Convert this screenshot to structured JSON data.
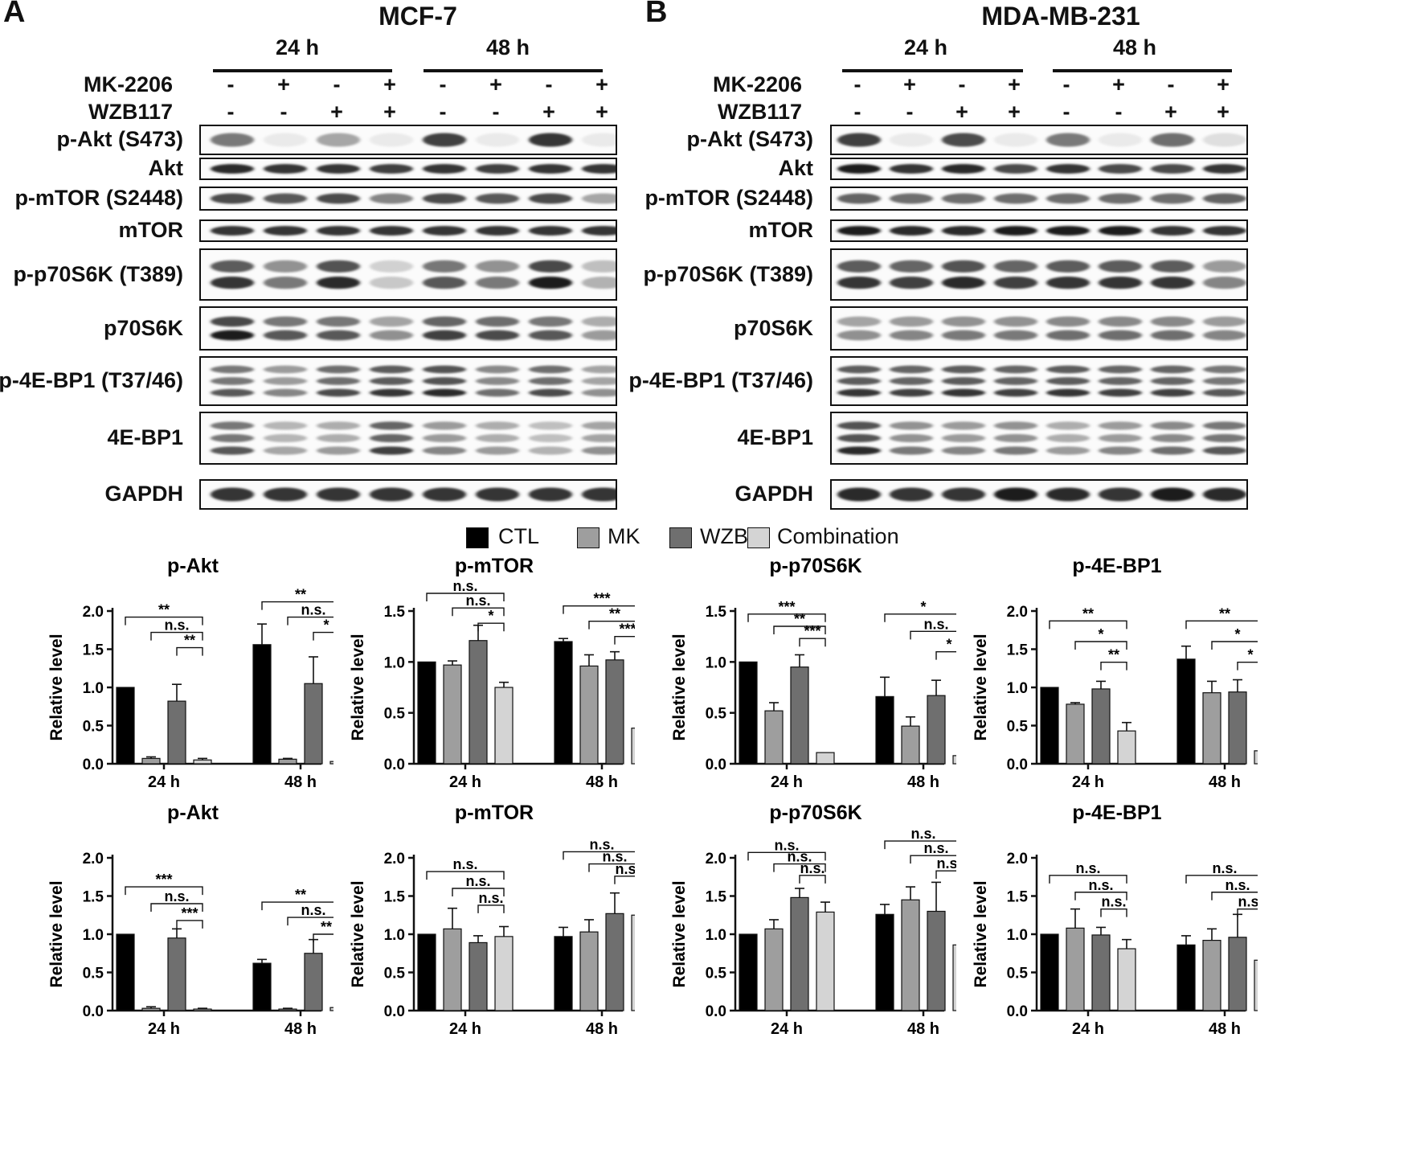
{
  "panels": [
    {
      "letter": "A",
      "cell_line": "MCF-7",
      "times": [
        "24 h",
        "48 h"
      ],
      "mk2206_label": "MK-2206",
      "wzb117_label": "WZB117",
      "mk2206": [
        "-",
        "+",
        "-",
        "+",
        "-",
        "+",
        "-",
        "+"
      ],
      "wzb117": [
        "-",
        "-",
        "+",
        "+",
        "-",
        "-",
        "+",
        "+"
      ],
      "blots": [
        {
          "label": "p-Akt (S473)",
          "lanes": [
            0.55,
            0.05,
            0.35,
            0.05,
            0.8,
            0.05,
            0.85,
            0.05
          ],
          "bands": 1
        },
        {
          "label": "Akt",
          "lanes": [
            0.9,
            0.85,
            0.85,
            0.8,
            0.85,
            0.8,
            0.85,
            0.85
          ],
          "bands": 1
        },
        {
          "label": "p-mTOR (S2448)",
          "lanes": [
            0.75,
            0.7,
            0.75,
            0.5,
            0.75,
            0.7,
            0.75,
            0.35
          ],
          "bands": 1
        },
        {
          "label": "mTOR",
          "lanes": [
            0.85,
            0.85,
            0.85,
            0.85,
            0.85,
            0.85,
            0.85,
            0.85
          ],
          "bands": 1
        },
        {
          "label": "p-p70S6K (T389)",
          "lanes": [
            0.85,
            0.55,
            0.9,
            0.2,
            0.7,
            0.55,
            0.95,
            0.3
          ],
          "bands": 2
        },
        {
          "label": "p70S6K",
          "lanes": [
            0.95,
            0.7,
            0.7,
            0.45,
            0.8,
            0.75,
            0.7,
            0.4
          ],
          "bands": 2
        },
        {
          "label": "p-4E-BP1 (T37/46)",
          "lanes": [
            0.7,
            0.5,
            0.75,
            0.85,
            0.9,
            0.6,
            0.75,
            0.45
          ],
          "bands": 3
        },
        {
          "label": "4E-BP1",
          "lanes": [
            0.7,
            0.35,
            0.4,
            0.8,
            0.5,
            0.4,
            0.3,
            0.45
          ],
          "bands": 3
        },
        {
          "label": "GAPDH",
          "lanes": [
            0.85,
            0.85,
            0.85,
            0.85,
            0.85,
            0.85,
            0.85,
            0.85
          ],
          "bands": 1
        }
      ]
    },
    {
      "letter": "B",
      "cell_line": "MDA-MB-231",
      "times": [
        "24 h",
        "48 h"
      ],
      "mk2206_label": "MK-2206",
      "wzb117_label": "WZB117",
      "mk2206": [
        "-",
        "+",
        "-",
        "+",
        "-",
        "+",
        "-",
        "+"
      ],
      "wzb117": [
        "-",
        "-",
        "+",
        "+",
        "-",
        "-",
        "+",
        "+"
      ],
      "blots": [
        {
          "label": "p-Akt (S473)",
          "lanes": [
            0.8,
            0.05,
            0.75,
            0.05,
            0.55,
            0.05,
            0.6,
            0.1
          ],
          "bands": 1
        },
        {
          "label": "Akt",
          "lanes": [
            0.95,
            0.85,
            0.9,
            0.75,
            0.85,
            0.75,
            0.75,
            0.85
          ],
          "bands": 1
        },
        {
          "label": "p-mTOR (S2448)",
          "lanes": [
            0.65,
            0.6,
            0.6,
            0.6,
            0.6,
            0.6,
            0.6,
            0.65
          ],
          "bands": 1
        },
        {
          "label": "mTOR",
          "lanes": [
            0.95,
            0.9,
            0.9,
            0.95,
            0.95,
            0.95,
            0.85,
            0.85
          ],
          "bands": 1
        },
        {
          "label": "p-p70S6K (T389)",
          "lanes": [
            0.85,
            0.8,
            0.9,
            0.8,
            0.85,
            0.85,
            0.85,
            0.5
          ],
          "bands": 2
        },
        {
          "label": "p70S6K",
          "lanes": [
            0.45,
            0.5,
            0.55,
            0.55,
            0.6,
            0.6,
            0.6,
            0.5
          ],
          "bands": 2
        },
        {
          "label": "p-4E-BP1 (T37/46)",
          "lanes": [
            0.85,
            0.8,
            0.85,
            0.8,
            0.85,
            0.8,
            0.8,
            0.7
          ],
          "bands": 3
        },
        {
          "label": "4E-BP1",
          "lanes": [
            0.9,
            0.55,
            0.5,
            0.55,
            0.4,
            0.5,
            0.6,
            0.7
          ],
          "bands": 3
        },
        {
          "label": "GAPDH",
          "lanes": [
            0.9,
            0.85,
            0.85,
            0.95,
            0.9,
            0.85,
            0.95,
            0.9
          ],
          "bands": 1
        }
      ]
    }
  ],
  "legend": [
    {
      "name": "CTL",
      "color": "#000000"
    },
    {
      "name": "MK",
      "color": "#9e9e9e"
    },
    {
      "name": "WZB",
      "color": "#6f6f6f"
    },
    {
      "name": "Combination",
      "color": "#d4d4d4"
    }
  ],
  "chart_data": [
    {
      "type": "bar",
      "title": "p-Akt",
      "ylabel": "Relative level",
      "categories": [
        "24 h",
        "48 h"
      ],
      "ylim": [
        0,
        2.0
      ],
      "yticks": [
        "0.0",
        "0.5",
        "1.0",
        "1.5",
        "2.0"
      ],
      "series": [
        {
          "name": "CTL",
          "values": [
            1.0,
            1.56
          ],
          "errors": [
            0,
            0.27
          ]
        },
        {
          "name": "MK",
          "values": [
            0.07,
            0.06
          ],
          "errors": [
            0.02,
            0.01
          ]
        },
        {
          "name": "WZB",
          "values": [
            0.82,
            1.05
          ],
          "errors": [
            0.22,
            0.35
          ]
        },
        {
          "name": "Combination",
          "values": [
            0.05,
            0.03
          ],
          "errors": [
            0.02,
            0.01
          ]
        }
      ],
      "annotations": [
        {
          "group": 0,
          "from": 0,
          "level": 1.92,
          "text": "**"
        },
        {
          "group": 0,
          "from": 1,
          "level": 1.72,
          "text": "n.s."
        },
        {
          "group": 0,
          "from": 2,
          "level": 1.52,
          "text": "**"
        },
        {
          "group": 1,
          "from": 0,
          "level": 2.12,
          "text": "**"
        },
        {
          "group": 1,
          "from": 1,
          "level": 1.92,
          "text": "n.s."
        },
        {
          "group": 1,
          "from": 2,
          "level": 1.72,
          "text": "*"
        }
      ]
    },
    {
      "type": "bar",
      "title": "p-mTOR",
      "ylabel": "Relative level",
      "categories": [
        "24 h",
        "48 h"
      ],
      "ylim": [
        0,
        1.5
      ],
      "yticks": [
        "0.0",
        "0.5",
        "1.0",
        "1.5"
      ],
      "series": [
        {
          "name": "CTL",
          "values": [
            1.0,
            1.2
          ],
          "errors": [
            0,
            0.03
          ]
        },
        {
          "name": "MK",
          "values": [
            0.97,
            0.96
          ],
          "errors": [
            0.04,
            0.11
          ]
        },
        {
          "name": "WZB",
          "values": [
            1.21,
            1.02
          ],
          "errors": [
            0.15,
            0.08
          ]
        },
        {
          "name": "Combination",
          "values": [
            0.75,
            0.35
          ],
          "errors": [
            0.05,
            0.04
          ]
        }
      ],
      "annotations": [
        {
          "group": 0,
          "from": 0,
          "level": 1.7,
          "text": "n.s."
        },
        {
          "group": 0,
          "from": 1,
          "level": 1.53,
          "text": "n.s."
        },
        {
          "group": 0,
          "from": 2,
          "level": 1.38,
          "text": "*"
        },
        {
          "group": 1,
          "from": 0,
          "level": 1.55,
          "text": "***"
        },
        {
          "group": 1,
          "from": 1,
          "level": 1.4,
          "text": "**"
        },
        {
          "group": 1,
          "from": 2,
          "level": 1.25,
          "text": "***"
        }
      ]
    },
    {
      "type": "bar",
      "title": "p-p70S6K",
      "ylabel": "Relative level",
      "categories": [
        "24 h",
        "48 h"
      ],
      "ylim": [
        0,
        1.5
      ],
      "yticks": [
        "0.0",
        "0.5",
        "1.0",
        "1.5"
      ],
      "series": [
        {
          "name": "CTL",
          "values": [
            1.0,
            0.66
          ],
          "errors": [
            0,
            0.19
          ]
        },
        {
          "name": "MK",
          "values": [
            0.52,
            0.37
          ],
          "errors": [
            0.08,
            0.09
          ]
        },
        {
          "name": "WZB",
          "values": [
            0.95,
            0.67
          ],
          "errors": [
            0.12,
            0.15
          ]
        },
        {
          "name": "Combination",
          "values": [
            0.11,
            0.08
          ],
          "errors": [
            0,
            0.02
          ]
        }
      ],
      "annotations": [
        {
          "group": 0,
          "from": 0,
          "level": 1.47,
          "text": "***"
        },
        {
          "group": 0,
          "from": 1,
          "level": 1.35,
          "text": "**"
        },
        {
          "group": 0,
          "from": 2,
          "level": 1.23,
          "text": "***"
        },
        {
          "group": 1,
          "from": 0,
          "level": 1.47,
          "text": "*"
        },
        {
          "group": 1,
          "from": 1,
          "level": 1.3,
          "text": "n.s."
        },
        {
          "group": 1,
          "from": 2,
          "level": 1.1,
          "text": "*"
        }
      ]
    },
    {
      "type": "bar",
      "title": "p-4E-BP1",
      "ylabel": "Relative level",
      "categories": [
        "24 h",
        "48 h"
      ],
      "ylim": [
        0,
        2.0
      ],
      "yticks": [
        "0.0",
        "0.5",
        "1.0",
        "1.5",
        "2.0"
      ],
      "series": [
        {
          "name": "CTL",
          "values": [
            1.0,
            1.37
          ],
          "errors": [
            0,
            0.17
          ]
        },
        {
          "name": "MK",
          "values": [
            0.78,
            0.93
          ],
          "errors": [
            0.02,
            0.15
          ]
        },
        {
          "name": "WZB",
          "values": [
            0.98,
            0.94
          ],
          "errors": [
            0.1,
            0.16
          ]
        },
        {
          "name": "Combination",
          "values": [
            0.43,
            0.17
          ],
          "errors": [
            0.11,
            0.08
          ]
        }
      ],
      "annotations": [
        {
          "group": 0,
          "from": 0,
          "level": 1.87,
          "text": "**"
        },
        {
          "group": 0,
          "from": 1,
          "level": 1.6,
          "text": "*"
        },
        {
          "group": 0,
          "from": 2,
          "level": 1.33,
          "text": "**"
        },
        {
          "group": 1,
          "from": 0,
          "level": 1.87,
          "text": "**"
        },
        {
          "group": 1,
          "from": 1,
          "level": 1.6,
          "text": "*"
        },
        {
          "group": 1,
          "from": 2,
          "level": 1.33,
          "text": "*"
        }
      ]
    },
    {
      "type": "bar",
      "title": "p-Akt",
      "ylabel": "Relative level",
      "categories": [
        "24 h",
        "48 h"
      ],
      "ylim": [
        0,
        2.0
      ],
      "yticks": [
        "0.0",
        "0.5",
        "1.0",
        "1.5",
        "2.0"
      ],
      "series": [
        {
          "name": "CTL",
          "values": [
            1.0,
            0.62
          ],
          "errors": [
            0,
            0.05
          ]
        },
        {
          "name": "MK",
          "values": [
            0.03,
            0.02
          ],
          "errors": [
            0.02,
            0.01
          ]
        },
        {
          "name": "WZB",
          "values": [
            0.95,
            0.75
          ],
          "errors": [
            0.12,
            0.18
          ]
        },
        {
          "name": "Combination",
          "values": [
            0.02,
            0.04
          ],
          "errors": [
            0.01,
            0.01
          ]
        }
      ],
      "annotations": [
        {
          "group": 0,
          "from": 0,
          "level": 1.62,
          "text": "***"
        },
        {
          "group": 0,
          "from": 1,
          "level": 1.4,
          "text": "n.s."
        },
        {
          "group": 0,
          "from": 2,
          "level": 1.18,
          "text": "***"
        },
        {
          "group": 1,
          "from": 0,
          "level": 1.42,
          "text": "**"
        },
        {
          "group": 1,
          "from": 1,
          "level": 1.22,
          "text": "n.s."
        },
        {
          "group": 1,
          "from": 2,
          "level": 1.0,
          "text": "**"
        }
      ]
    },
    {
      "type": "bar",
      "title": "p-mTOR",
      "ylabel": "Relative level",
      "categories": [
        "24 h",
        "48 h"
      ],
      "ylim": [
        0,
        2.0
      ],
      "yticks": [
        "0.0",
        "0.5",
        "1.0",
        "1.5",
        "2.0"
      ],
      "series": [
        {
          "name": "CTL",
          "values": [
            1.0,
            0.97
          ],
          "errors": [
            0,
            0.12
          ]
        },
        {
          "name": "MK",
          "values": [
            1.07,
            1.03
          ],
          "errors": [
            0.27,
            0.16
          ]
        },
        {
          "name": "WZB",
          "values": [
            0.89,
            1.27
          ],
          "errors": [
            0.09,
            0.27
          ]
        },
        {
          "name": "Combination",
          "values": [
            0.97,
            1.25
          ],
          "errors": [
            0.13,
            0.07
          ]
        }
      ],
      "annotations": [
        {
          "group": 0,
          "from": 0,
          "level": 1.82,
          "text": "n.s."
        },
        {
          "group": 0,
          "from": 1,
          "level": 1.6,
          "text": "n.s."
        },
        {
          "group": 0,
          "from": 2,
          "level": 1.38,
          "text": "n.s."
        },
        {
          "group": 1,
          "from": 0,
          "level": 2.08,
          "text": "n.s."
        },
        {
          "group": 1,
          "from": 1,
          "level": 1.92,
          "text": "n.s."
        },
        {
          "group": 1,
          "from": 2,
          "level": 1.76,
          "text": "n.s."
        }
      ]
    },
    {
      "type": "bar",
      "title": "p-p70S6K",
      "ylabel": "Relative level",
      "categories": [
        "24 h",
        "48 h"
      ],
      "ylim": [
        0,
        2.0
      ],
      "yticks": [
        "0.0",
        "0.5",
        "1.0",
        "1.5",
        "2.0"
      ],
      "series": [
        {
          "name": "CTL",
          "values": [
            1.0,
            1.26
          ],
          "errors": [
            0,
            0.13
          ]
        },
        {
          "name": "MK",
          "values": [
            1.07,
            1.45
          ],
          "errors": [
            0.12,
            0.17
          ]
        },
        {
          "name": "WZB",
          "values": [
            1.48,
            1.3
          ],
          "errors": [
            0.12,
            0.38
          ]
        },
        {
          "name": "Combination",
          "values": [
            1.29,
            0.86
          ],
          "errors": [
            0.13,
            0.17
          ]
        }
      ],
      "annotations": [
        {
          "group": 0,
          "from": 0,
          "level": 2.07,
          "text": "n.s."
        },
        {
          "group": 0,
          "from": 1,
          "level": 1.92,
          "text": "n.s."
        },
        {
          "group": 0,
          "from": 2,
          "level": 1.77,
          "text": "n.s."
        },
        {
          "group": 1,
          "from": 0,
          "level": 2.22,
          "text": "n.s."
        },
        {
          "group": 1,
          "from": 1,
          "level": 2.03,
          "text": "n.s."
        },
        {
          "group": 1,
          "from": 2,
          "level": 1.83,
          "text": "n.s."
        }
      ]
    },
    {
      "type": "bar",
      "title": "p-4E-BP1",
      "ylabel": "Relative level",
      "categories": [
        "24 h",
        "48 h"
      ],
      "ylim": [
        0,
        2.0
      ],
      "yticks": [
        "0.0",
        "0.5",
        "1.0",
        "1.5",
        "2.0"
      ],
      "series": [
        {
          "name": "CTL",
          "values": [
            1.0,
            0.86
          ],
          "errors": [
            0,
            0.12
          ]
        },
        {
          "name": "MK",
          "values": [
            1.08,
            0.92
          ],
          "errors": [
            0.25,
            0.15
          ]
        },
        {
          "name": "WZB",
          "values": [
            0.99,
            0.96
          ],
          "errors": [
            0.1,
            0.3
          ]
        },
        {
          "name": "Combination",
          "values": [
            0.81,
            0.66
          ],
          "errors": [
            0.12,
            0.06
          ]
        }
      ],
      "annotations": [
        {
          "group": 0,
          "from": 0,
          "level": 1.77,
          "text": "n.s."
        },
        {
          "group": 0,
          "from": 1,
          "level": 1.55,
          "text": "n.s."
        },
        {
          "group": 0,
          "from": 2,
          "level": 1.33,
          "text": "n.s."
        },
        {
          "group": 1,
          "from": 0,
          "level": 1.77,
          "text": "n.s."
        },
        {
          "group": 1,
          "from": 1,
          "level": 1.55,
          "text": "n.s."
        },
        {
          "group": 1,
          "from": 2,
          "level": 1.33,
          "text": "n.s."
        }
      ]
    }
  ]
}
